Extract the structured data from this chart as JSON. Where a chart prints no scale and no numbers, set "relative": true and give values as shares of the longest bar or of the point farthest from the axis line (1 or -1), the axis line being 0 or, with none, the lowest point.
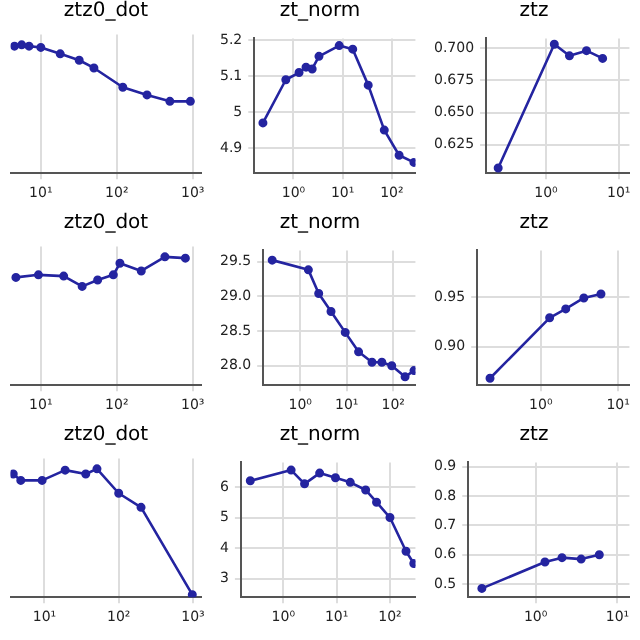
{
  "chart_data": [
    {
      "type": "line",
      "title": "ztz0_dot",
      "relative": true,
      "log": "x",
      "grid": true,
      "marker": "circle",
      "xlim": [
        4,
        1300
      ],
      "xticks": [
        {
          "value": 10,
          "label": "10¹"
        },
        {
          "value": 100,
          "label": "10²"
        },
        {
          "value": 1000,
          "label": "10³"
        }
      ],
      "x": [
        4.5,
        5.6,
        7,
        10,
        18,
        32,
        50,
        120,
        250,
        500,
        930
      ],
      "series": [
        {
          "color": "#2424a0",
          "values": [
            0.99,
            1,
            0.99,
            0.98,
            0.93,
            0.88,
            0.82,
            0.67,
            0.61,
            0.56,
            0.56
          ]
        }
      ]
    },
    {
      "type": "line",
      "title": "zt_norm",
      "log": "x",
      "grid": true,
      "marker": "circle",
      "xlim": [
        0.16,
        300
      ],
      "xticks": [
        {
          "value": 1,
          "label": "10⁰"
        },
        {
          "value": 10,
          "label": "10¹"
        },
        {
          "value": 100,
          "label": "10²"
        }
      ],
      "ylim": [
        4.83,
        5.205
      ],
      "yticks": [
        4.9,
        5.0,
        5.1,
        5.2
      ],
      "x": [
        0.24,
        0.7,
        1.3,
        1.8,
        2.4,
        3.3,
        8.5,
        16,
        33,
        70,
        140,
        280
      ],
      "series": [
        {
          "color": "#2424a0",
          "values": [
            4.97,
            5.09,
            5.11,
            5.125,
            5.12,
            5.155,
            5.185,
            5.175,
            5.075,
            4.95,
            4.88,
            4.86
          ]
        }
      ]
    },
    {
      "type": "line",
      "title": "ztz",
      "log": "x",
      "grid": true,
      "marker": "circle",
      "xlim": [
        0.15,
        14
      ],
      "xticks": [
        {
          "value": 1,
          "label": "10⁰"
        },
        {
          "value": 10,
          "label": "10¹"
        }
      ],
      "ylim": [
        0.603,
        0.7075
      ],
      "yticks": [
        {
          "value": 0.625,
          "label": "0.625"
        },
        {
          "value": 0.65,
          "label": "0.650"
        },
        {
          "value": 0.675,
          "label": "0.675"
        },
        {
          "value": 0.7,
          "label": "0.700"
        }
      ],
      "x": [
        0.22,
        1.3,
        2.1,
        3.6,
        6
      ],
      "series": [
        {
          "color": "#2424a0",
          "values": [
            0.607,
            0.703,
            0.694,
            0.698,
            0.692
          ]
        }
      ]
    },
    {
      "type": "line",
      "title": "ztz0_dot",
      "relative": true,
      "log": "x",
      "grid": true,
      "marker": "circle",
      "xlim": [
        4,
        1300
      ],
      "xticks": [
        {
          "value": 10,
          "label": "10¹"
        },
        {
          "value": 100,
          "label": "10²"
        },
        {
          "value": 1000,
          "label": "10³"
        }
      ],
      "x": [
        4.7,
        9.3,
        20,
        35,
        56,
        90,
        110,
        210,
        430,
        800
      ],
      "series": [
        {
          "color": "#2424a0",
          "values": [
            0.84,
            0.86,
            0.85,
            0.77,
            0.82,
            0.86,
            0.95,
            0.89,
            1,
            0.99
          ]
        }
      ]
    },
    {
      "type": "line",
      "title": "zt_norm",
      "log": "x",
      "grid": true,
      "marker": "circle",
      "xlim": [
        0.16,
        300
      ],
      "xticks": [
        {
          "value": 1,
          "label": "10⁰"
        },
        {
          "value": 10,
          "label": "10¹"
        },
        {
          "value": 100,
          "label": "10²"
        }
      ],
      "ylim": [
        27.72,
        29.66
      ],
      "yticks": [
        {
          "value": 28,
          "label": "28.0"
        },
        {
          "value": 28.5,
          "label": "28.5"
        },
        {
          "value": 29,
          "label": "29.0"
        },
        {
          "value": 29.5,
          "label": "29.5"
        }
      ],
      "x": [
        0.25,
        1.5,
        2.5,
        4.6,
        9.3,
        18,
        35,
        57,
        93,
        180,
        280
      ],
      "series": [
        {
          "color": "#2424a0",
          "values": [
            29.52,
            29.38,
            29.04,
            28.78,
            28.48,
            28.2,
            28.05,
            28.05,
            28.0,
            27.84,
            27.93
          ]
        }
      ]
    },
    {
      "type": "line",
      "title": "ztz",
      "log": "x",
      "grid": true,
      "marker": "circle",
      "xlim": [
        0.15,
        14
      ],
      "xticks": [
        {
          "value": 1,
          "label": "10⁰"
        },
        {
          "value": 10,
          "label": "10¹"
        }
      ],
      "ylim": [
        0.861,
        0.997
      ],
      "yticks": [
        {
          "value": 0.9,
          "label": "0.90"
        },
        {
          "value": 0.95,
          "label": "0.95"
        }
      ],
      "x": [
        0.22,
        1.3,
        2.1,
        3.6,
        6
      ],
      "series": [
        {
          "color": "#2424a0",
          "values": [
            0.868,
            0.929,
            0.938,
            0.949,
            0.953
          ]
        }
      ]
    },
    {
      "type": "line",
      "title": "ztz0_dot",
      "relative": true,
      "log": "x",
      "grid": true,
      "marker": "circle",
      "xlim": [
        3.5,
        1300
      ],
      "xticks": [
        {
          "value": 10,
          "label": "10¹"
        },
        {
          "value": 100,
          "label": "10²"
        },
        {
          "value": 1000,
          "label": "10³"
        }
      ],
      "x": [
        3.8,
        4.8,
        9.3,
        19,
        36,
        51,
        100,
        200,
        980
      ],
      "series": [
        {
          "color": "#2424a0",
          "values": [
            0.96,
            0.91,
            0.91,
            0.99,
            0.96,
            1,
            0.81,
            0.7,
            0.02
          ]
        }
      ]
    },
    {
      "type": "line",
      "title": "zt_norm",
      "log": "x",
      "grid": true,
      "marker": "circle",
      "xlim": [
        0.16,
        300
      ],
      "xticks": [
        {
          "value": 1,
          "label": "10⁰"
        },
        {
          "value": 10,
          "label": "10¹"
        },
        {
          "value": 100,
          "label": "10²"
        }
      ],
      "ylim": [
        2.4,
        6.8
      ],
      "yticks": [
        3,
        4,
        5,
        6
      ],
      "x": [
        0.24,
        1.4,
        2.5,
        4.8,
        9.5,
        18,
        35,
        56,
        100,
        200,
        280
      ],
      "series": [
        {
          "color": "#2424a0",
          "values": [
            6.2,
            6.55,
            6.1,
            6.45,
            6.3,
            6.15,
            5.9,
            5.5,
            5.0,
            3.9,
            3.5
          ]
        }
      ]
    },
    {
      "type": "line",
      "title": "ztz",
      "log": "x",
      "grid": true,
      "marker": "circle",
      "xlim": [
        0.15,
        14
      ],
      "xticks": [
        {
          "value": 1,
          "label": "10⁰"
        },
        {
          "value": 10,
          "label": "10¹"
        }
      ],
      "ylim": [
        0.455,
        0.915
      ],
      "yticks": [
        0.5,
        0.6,
        0.7,
        0.8,
        0.9
      ],
      "x": [
        0.22,
        1.3,
        2.1,
        3.6,
        6
      ],
      "series": [
        {
          "color": "#2424a0",
          "values": [
            0.485,
            0.575,
            0.59,
            0.585,
            0.6
          ]
        }
      ]
    }
  ]
}
